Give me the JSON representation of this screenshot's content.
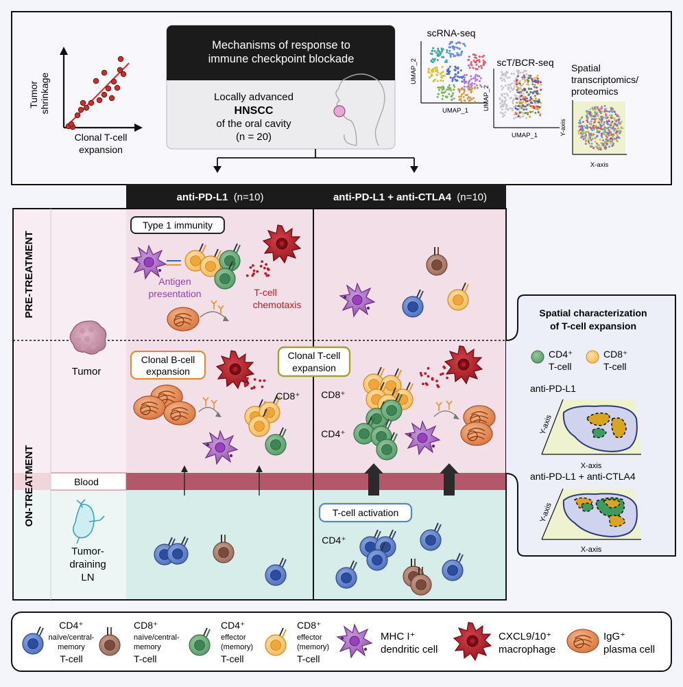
{
  "header": {
    "scatter": {
      "ylabel": [
        "Tumor",
        "shrinkage"
      ],
      "xlabel": [
        "Clonal T-cell",
        "expansion"
      ]
    },
    "title_box": {
      "heading": [
        "Mechanisms of response to",
        "immune checkpoint blockade"
      ],
      "line1": "Locally advanced",
      "line2": "HNSCC",
      "line3": "of the oral cavity",
      "line4": "(n = 20)"
    },
    "omics": {
      "scrna_title": "scRNA-seq",
      "sctbcr_title": "scT/BCR-seq",
      "spatial_title": [
        "Spatial",
        "transcriptomics/",
        "proteomics"
      ],
      "umap_x": "UMAP_1",
      "umap_y": "UMAP_2",
      "x_axis": "X-axis",
      "y_axis": "Y-axis"
    }
  },
  "arms": {
    "arm1_name": "anti-PD-L1",
    "arm1_n": "(n=10)",
    "arm2_name": "anti-PD-L1 + anti-CTLA4",
    "arm2_n": "(n=10)"
  },
  "rows": {
    "pre": "PRE-TREATMENT",
    "on": "ON-TREATMENT",
    "tumor": "Tumor",
    "blood": "Blood",
    "ln": [
      "Tumor-",
      "draining",
      "LN"
    ]
  },
  "labels": {
    "type1": "Type 1 immunity",
    "antigen": [
      "Antigen",
      "presentation"
    ],
    "chemotaxis": [
      "T-cell",
      "chemotaxis"
    ],
    "bcell": [
      "Clonal B-cell",
      "expansion"
    ],
    "tcell": [
      "Clonal T-cell",
      "expansion"
    ],
    "cd8": "CD8⁺",
    "cd4": "CD4⁺",
    "activation": "T-cell activation"
  },
  "spatial_panel": {
    "title": [
      "Spatial characterization",
      "of T-cell expansion"
    ],
    "cd4": [
      "CD4⁺",
      "T-cell"
    ],
    "cd8": [
      "CD8⁺",
      "T-cell"
    ],
    "plot1": "anti-PD-L1",
    "plot2": "anti-PD-L1 + anti-CTLA4",
    "x_axis": "X-axis",
    "y_axis": "Y-axis"
  },
  "legend": [
    {
      "line1": "CD4⁺",
      "line2": "naïve/central-",
      "line3": "memory",
      "line4": "T-cell"
    },
    {
      "line1": "CD8⁺",
      "line2": "naïve/central-",
      "line3": "memory",
      "line4": "T-cell"
    },
    {
      "line1": "CD4⁺",
      "line2": "effector",
      "line3": "(memory)",
      "line4": "T-cell"
    },
    {
      "line1": "CD8⁺",
      "line2": "effector",
      "line3": "(memory)",
      "line4": "T-cell"
    },
    {
      "line1": "MHC I⁺",
      "line2": "dendritic cell"
    },
    {
      "line1": "CXCL9/10⁺",
      "line2": "macrophage"
    },
    {
      "line1": "IgG⁺",
      "line2": "plasma cell"
    }
  ],
  "colors": {
    "cd4_naive": "#3f63b4",
    "cd8_naive": "#8b5a4b",
    "cd4_eff": "#4e9a64",
    "cd8_eff": "#f4b24a",
    "dc": "#9a52b0",
    "mac": "#a5151f",
    "plasma": "#e08850",
    "tumor_bg": "#f3dfe8",
    "ln_bg": "#d6ede9",
    "blood": "#b5576a"
  }
}
